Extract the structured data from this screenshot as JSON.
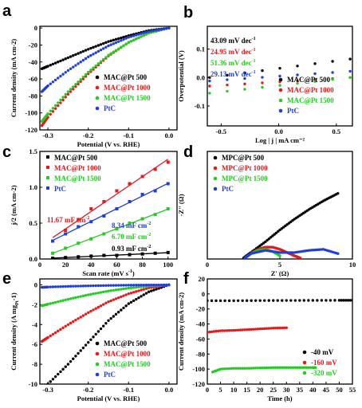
{
  "figure": {
    "colors": {
      "black": "#000000",
      "red": "#e41a1c",
      "green": "#22cc22",
      "blue": "#1f3fd8"
    }
  },
  "chart_data": [
    {
      "panel": "a",
      "type": "line",
      "xlabel": "Potential (V vs. RHE)",
      "ylabel": "Current density (mA cm-2)",
      "xlim": [
        -0.32,
        0.02
      ],
      "ylim": [
        -120,
        2
      ],
      "xticks": [
        -0.3,
        -0.2,
        -0.1,
        0.0
      ],
      "xtick_labels": [
        "-0.3",
        "-0.2",
        "-0.1",
        "0.0"
      ],
      "yticks": [
        -120,
        -100,
        -80,
        -60,
        -40,
        -20,
        0
      ],
      "ytick_labels": [
        "-120",
        "-100",
        "-80",
        "-60",
        "-40",
        "-20",
        "0"
      ],
      "legend_position": "lower-right",
      "marker": "dot",
      "series": [
        {
          "name": "MAC@Pt 500",
          "color": "#000000",
          "x": [
            -0.315,
            -0.3,
            -0.25,
            -0.2,
            -0.15,
            -0.1,
            -0.05,
            0.0
          ],
          "y": [
            -48,
            -45,
            -35,
            -25,
            -16,
            -9,
            -3,
            0
          ]
        },
        {
          "name": "MAC@Pt 1000",
          "color": "#e41a1c",
          "x": [
            -0.315,
            -0.3,
            -0.25,
            -0.2,
            -0.15,
            -0.1,
            -0.05,
            0.0
          ],
          "y": [
            -115,
            -105,
            -78,
            -54,
            -33,
            -17,
            -6,
            0
          ]
        },
        {
          "name": "MAC@Pt 1500",
          "color": "#22cc22",
          "x": [
            -0.315,
            -0.3,
            -0.25,
            -0.2,
            -0.15,
            -0.1,
            -0.05,
            0.0
          ],
          "y": [
            -110,
            -101,
            -75,
            -52,
            -32,
            -17,
            -6,
            0
          ]
        },
        {
          "name": "PtC",
          "color": "#1f3fd8",
          "x": [
            -0.315,
            -0.3,
            -0.25,
            -0.2,
            -0.15,
            -0.1,
            -0.05,
            0.0
          ],
          "y": [
            -75,
            -68,
            -50,
            -34,
            -21,
            -11,
            -4,
            0
          ]
        }
      ]
    },
    {
      "panel": "b",
      "type": "scatter",
      "xlabel": "Log | j | mA cm⁻²",
      "ylabel": "Overpotential (V)",
      "xlim": [
        -0.62,
        0.64
      ],
      "ylim": [
        -0.17,
        0.18
      ],
      "xticks": [
        -0.5,
        0.0,
        0.5
      ],
      "xtick_labels": [
        "-0.5",
        "0.0",
        "0.5"
      ],
      "yticks": [
        -0.1,
        0.0,
        0.1
      ],
      "ytick_labels": [
        "-0.1",
        "0.0",
        "0.1"
      ],
      "legend_position": "lower-right",
      "marker": "dot",
      "annotations": [
        {
          "text": "43.09 mV dec",
          "sup": "-1",
          "color": "#000000"
        },
        {
          "text": "24.95 mV dec",
          "sup": "-1",
          "color": "#e41a1c"
        },
        {
          "text": "51.36 mV dec",
          "sup": "-1",
          "color": "#22cc22"
        },
        {
          "text": "29.13 mV dec",
          "sup": "-1",
          "color": "#1f3fd8"
        }
      ],
      "series": [
        {
          "name": "MAC@Pt 500",
          "color": "#000000",
          "x": [
            -0.6,
            0.62
          ],
          "y": [
            0.0,
            0.065
          ]
        },
        {
          "name": "MAC@Pt 1000",
          "color": "#e41a1c",
          "x": [
            -0.6,
            0.62
          ],
          "y": [
            -0.03,
            0.0
          ]
        },
        {
          "name": "MAC@Pt 1500",
          "color": "#22cc22",
          "x": [
            -0.6,
            0.62
          ],
          "y": [
            -0.055,
            0.0
          ]
        },
        {
          "name": "PtC",
          "color": "#1f3fd8",
          "x": [
            -0.6,
            0.62
          ],
          "y": [
            -0.012,
            0.022
          ]
        }
      ]
    },
    {
      "panel": "c",
      "type": "scatter",
      "xlabel": "Scan rate (mV s",
      "xlabel_sup": "-1",
      "xlabel_end": ")",
      "ylabel": "j/2 (mA cm-2)",
      "xlim": [
        0,
        107
      ],
      "ylim": [
        0,
        1.5
      ],
      "xticks": [
        0,
        20,
        40,
        60,
        80,
        100
      ],
      "xtick_labels": [
        "0",
        "20",
        "40",
        "60",
        "80",
        "100"
      ],
      "yticks": [
        0.0,
        0.5,
        1.0,
        1.5
      ],
      "ytick_labels": [
        "0.0",
        "0.5",
        "1.0",
        "1.5"
      ],
      "legend_position": "top-left",
      "marker": "square",
      "annotations": [
        {
          "text": "11.67 mF cm",
          "sup": "-2",
          "color": "#e41a1c"
        },
        {
          "text": "8.34 mF cm",
          "sup": "-2",
          "color": "#1f3fd8"
        },
        {
          "text": "6.70 mF cm",
          "sup": "-2",
          "color": "#22cc22"
        },
        {
          "text": "0.93 mF cm",
          "sup": "-2",
          "color": "#000000"
        }
      ],
      "series": [
        {
          "name": "MAC@Pt 500",
          "color": "#000000",
          "x": [
            10,
            20,
            30,
            40,
            50,
            60,
            70,
            80,
            90,
            100
          ],
          "y": [
            0.01,
            0.02,
            0.03,
            0.04,
            0.05,
            0.05,
            0.06,
            0.07,
            0.08,
            0.09
          ]
        },
        {
          "name": "MAC@Pt 1000",
          "color": "#e41a1c",
          "x": [
            10,
            20,
            30,
            40,
            50,
            60,
            70,
            80,
            90,
            100
          ],
          "y": [
            0.25,
            0.4,
            0.55,
            0.7,
            0.8,
            0.95,
            1.05,
            1.15,
            1.25,
            1.35
          ]
        },
        {
          "name": "MAC@Pt 1500",
          "color": "#22cc22",
          "x": [
            10,
            20,
            30,
            40,
            50,
            60,
            70,
            80,
            90,
            100
          ],
          "y": [
            0.08,
            0.15,
            0.22,
            0.28,
            0.35,
            0.42,
            0.5,
            0.56,
            0.62,
            0.7
          ]
        },
        {
          "name": "PtC",
          "color": "#1f3fd8",
          "x": [
            10,
            20,
            30,
            40,
            50,
            60,
            70,
            80,
            90,
            100
          ],
          "y": [
            0.25,
            0.35,
            0.45,
            0.52,
            0.6,
            0.7,
            0.8,
            0.9,
            0.95,
            1.05
          ]
        }
      ]
    },
    {
      "panel": "d",
      "type": "scatter",
      "xlabel": "Z' (Ω)",
      "ylabel": "-Z'' (Ω)",
      "xlim": [
        0,
        10
      ],
      "ylim": [
        0,
        10
      ],
      "xticks": [
        0,
        5,
        10
      ],
      "xtick_labels": [
        "0",
        "5",
        "10"
      ],
      "yticks": [],
      "ytick_labels": [],
      "legend_position": "top-left",
      "marker": "dot",
      "series": [
        {
          "name": "MPC@Pt 500",
          "color": "#000000",
          "x": [
            2.5,
            3,
            4,
            5,
            6,
            7,
            8,
            9
          ],
          "y": [
            0.1,
            0.6,
            1.6,
            2.7,
            3.7,
            4.6,
            5.4,
            6.1
          ]
        },
        {
          "name": "MPC@Pt 1000",
          "color": "#e41a1c",
          "x": [
            2.6,
            3,
            3.5,
            4,
            4.5,
            5,
            5.5,
            6,
            6.4
          ],
          "y": [
            0.1,
            0.5,
            0.9,
            1.1,
            1.1,
            0.9,
            0.6,
            0.3,
            0.1
          ]
        },
        {
          "name": "MPC@Pt 1500",
          "color": "#22cc22",
          "x": [
            2.6,
            3,
            3.5,
            4,
            4.5,
            5
          ],
          "y": [
            0.1,
            0.5,
            0.8,
            0.9,
            0.7,
            0.3
          ]
        },
        {
          "name": "PtC",
          "color": "#1f3fd8",
          "x": [
            2.6,
            3,
            4,
            5,
            6,
            7,
            8,
            9
          ],
          "y": [
            0.1,
            0.5,
            0.8,
            0.6,
            0.6,
            0.8,
            0.9,
            0.5
          ]
        }
      ]
    },
    {
      "panel": "e",
      "type": "line",
      "xlabel": "Potential (V vs. RHE)",
      "ylabel": "Current density (A mg",
      "ylabel_sub": "Pt",
      "ylabel_end": "-1)",
      "xlim": [
        -0.32,
        0.02
      ],
      "ylim": [
        -10,
        0.6
      ],
      "xticks": [
        -0.3,
        -0.2,
        -0.1,
        0.0
      ],
      "xtick_labels": [
        "-0.3",
        "-0.2",
        "-0.1",
        "0.0"
      ],
      "yticks": [
        -10,
        -8,
        -6,
        -4,
        -2,
        0
      ],
      "ytick_labels": [
        "-10",
        "-8",
        "-6",
        "-4",
        "-2",
        "0"
      ],
      "legend_position": "lower-right",
      "marker": "dot",
      "series": [
        {
          "name": "MAC@Pt 500",
          "color": "#000000",
          "x": [
            -0.3,
            -0.25,
            -0.2,
            -0.15,
            -0.1,
            -0.05,
            0.0
          ],
          "y": [
            -10,
            -8.0,
            -5.8,
            -3.6,
            -1.9,
            -0.7,
            0
          ]
        },
        {
          "name": "MAC@Pt 1000",
          "color": "#e41a1c",
          "x": [
            -0.315,
            -0.3,
            -0.25,
            -0.2,
            -0.15,
            -0.1,
            -0.05,
            0.0
          ],
          "y": [
            -5.7,
            -5.3,
            -4.0,
            -2.8,
            -1.7,
            -0.9,
            -0.3,
            0
          ]
        },
        {
          "name": "MAC@Pt 1500",
          "color": "#22cc22",
          "x": [
            -0.315,
            -0.3,
            -0.25,
            -0.2,
            -0.15,
            -0.1,
            -0.05,
            0.0
          ],
          "y": [
            -2.1,
            -1.95,
            -1.45,
            -1.0,
            -0.62,
            -0.33,
            -0.12,
            0
          ]
        },
        {
          "name": "PtC",
          "color": "#1f3fd8",
          "x": [
            -0.315,
            -0.3,
            -0.25,
            -0.2,
            -0.15,
            -0.1,
            -0.05,
            0.0
          ],
          "y": [
            -0.25,
            -0.22,
            -0.15,
            -0.1,
            -0.06,
            -0.03,
            -0.01,
            0
          ]
        }
      ]
    },
    {
      "panel": "f",
      "type": "line",
      "xlabel": "Time (h)",
      "ylabel": "Current density (mA cm-2)",
      "xlim": [
        0,
        55
      ],
      "ylim": [
        -120,
        20
      ],
      "xticks": [
        0,
        5,
        10,
        15,
        20,
        25,
        30,
        35,
        40,
        45,
        50,
        55
      ],
      "xtick_labels": [
        "0",
        "5",
        "10",
        "15",
        "20",
        "25",
        "30",
        "35",
        "40",
        "45",
        "50",
        "55"
      ],
      "yticks": [
        -120,
        -100,
        -80,
        -60,
        -40,
        -20,
        0,
        20
      ],
      "ytick_labels": [
        "-120",
        "-100",
        "-80",
        "-60",
        "-40",
        "-20",
        "0",
        "20"
      ],
      "legend_position": "lower-right",
      "marker": "dot",
      "series": [
        {
          "name": "-40 mV",
          "color": "#000000",
          "x": [
            0,
            10,
            20,
            30,
            40,
            50,
            55
          ],
          "y": [
            -9,
            -9,
            -8.8,
            -8.7,
            -8.6,
            -8.5,
            -8.5
          ]
        },
        {
          "name": "-160 mV",
          "color": "#e41a1c",
          "x": [
            0,
            5,
            10,
            15,
            20,
            25,
            30
          ],
          "y": [
            -51,
            -49,
            -48.5,
            -47.5,
            -46.5,
            -45.5,
            -45
          ]
        },
        {
          "name": "-320 mV",
          "color": "#22cc22",
          "x": [
            2,
            5,
            10,
            15,
            20,
            25,
            30,
            35,
            40,
            41
          ],
          "y": [
            -104,
            -100,
            -99,
            -99,
            -98.5,
            -98,
            -98,
            -98,
            -98,
            -98
          ]
        }
      ]
    }
  ]
}
